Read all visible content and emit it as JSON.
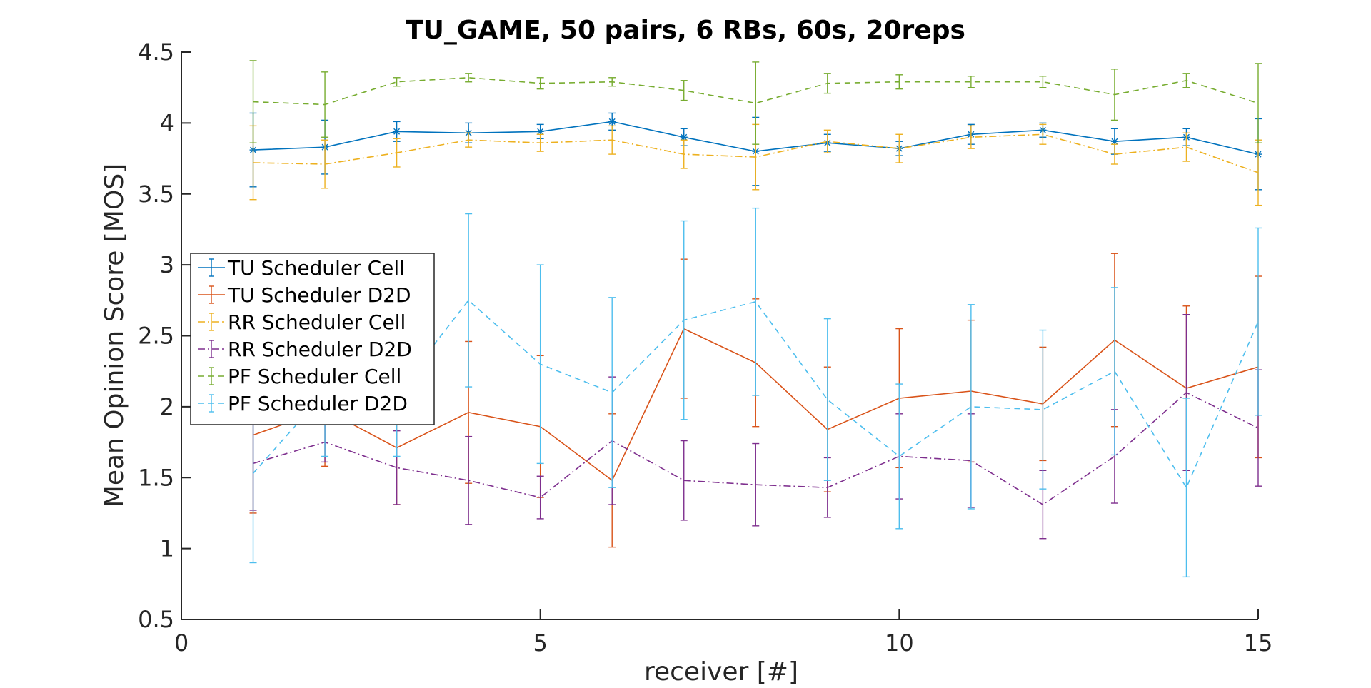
{
  "chart_data": {
    "type": "line",
    "title": "TU_GAME, 50 pairs, 6 RBs, 60s, 20reps",
    "xlabel": "receiver [#]",
    "ylabel": "Mean Opinion Score [MOS]",
    "xlim": [
      0,
      15
    ],
    "ylim": [
      0.5,
      4.5
    ],
    "xticks": [
      0,
      5,
      10,
      15
    ],
    "yticks": [
      0.5,
      1,
      1.5,
      2,
      2.5,
      3,
      3.5,
      4,
      4.5
    ],
    "xtick_labels": [
      "0",
      "5",
      "10",
      "15"
    ],
    "ytick_labels": [
      "0.5",
      "1",
      "1.5",
      "2",
      "2.5",
      "3",
      "3.5",
      "4",
      "4.5"
    ],
    "grid": false,
    "legend_position": "left",
    "x": [
      1,
      2,
      3,
      4,
      5,
      6,
      7,
      8,
      9,
      10,
      11,
      12,
      13,
      14,
      15
    ],
    "series": [
      {
        "name": "TU Scheduler Cell",
        "color": "#0072BD",
        "dash": "",
        "marker": "asterisk",
        "values": [
          3.81,
          3.83,
          3.94,
          3.93,
          3.94,
          4.01,
          3.9,
          3.8,
          3.86,
          3.82,
          3.92,
          3.95,
          3.87,
          3.9,
          3.78
        ],
        "err": [
          0.26,
          0.19,
          0.07,
          0.07,
          0.05,
          0.06,
          0.06,
          0.24,
          0.06,
          0.05,
          0.07,
          0.05,
          0.09,
          0.06,
          0.25
        ]
      },
      {
        "name": "TU Scheduler D2D",
        "color": "#D95319",
        "dash": "",
        "marker": "none",
        "values": [
          1.8,
          1.98,
          1.71,
          1.96,
          1.86,
          1.48,
          2.55,
          2.31,
          1.84,
          2.06,
          2.11,
          2.02,
          2.47,
          2.13,
          2.28
        ],
        "err": [
          0.55,
          0.4,
          0.4,
          0.5,
          0.5,
          0.47,
          0.49,
          0.45,
          0.44,
          0.49,
          0.5,
          0.4,
          0.61,
          0.58,
          0.64
        ]
      },
      {
        "name": "RR Scheduler Cell",
        "color": "#EDB120",
        "dash": "10 4 2 4",
        "marker": "none",
        "values": [
          3.72,
          3.71,
          3.79,
          3.88,
          3.86,
          3.88,
          3.78,
          3.76,
          3.87,
          3.82,
          3.9,
          3.92,
          3.78,
          3.83,
          3.65
        ],
        "err": [
          0.26,
          0.17,
          0.1,
          0.05,
          0.06,
          0.1,
          0.1,
          0.23,
          0.08,
          0.1,
          0.08,
          0.07,
          0.07,
          0.1,
          0.23
        ]
      },
      {
        "name": "RR Scheduler D2D",
        "color": "#7E2F8E",
        "dash": "10 4 2 4",
        "marker": "none",
        "values": [
          1.6,
          1.75,
          1.57,
          1.48,
          1.36,
          1.76,
          1.48,
          1.45,
          1.43,
          1.65,
          1.62,
          1.31,
          1.65,
          2.1,
          1.85
        ],
        "err": [
          0.33,
          0.14,
          0.26,
          0.31,
          0.15,
          0.45,
          0.28,
          0.29,
          0.21,
          0.3,
          0.33,
          0.24,
          0.33,
          0.55,
          0.41
        ]
      },
      {
        "name": "PF Scheduler Cell",
        "color": "#77AC30",
        "dash": "8 6",
        "marker": "none",
        "values": [
          4.15,
          4.13,
          4.29,
          4.32,
          4.28,
          4.29,
          4.23,
          4.14,
          4.28,
          4.29,
          4.29,
          4.29,
          4.2,
          4.3,
          4.14
        ],
        "err": [
          0.29,
          0.23,
          0.03,
          0.03,
          0.04,
          0.03,
          0.07,
          0.29,
          0.07,
          0.05,
          0.04,
          0.04,
          0.18,
          0.05,
          0.28
        ]
      },
      {
        "name": "PF Scheduler D2D",
        "color": "#4DBEEE",
        "dash": "8 6",
        "marker": "none",
        "values": [
          1.53,
          2.1,
          2.1,
          2.75,
          2.3,
          2.1,
          2.61,
          2.74,
          2.05,
          1.65,
          2.0,
          1.98,
          2.25,
          1.43,
          2.6
        ],
        "err": [
          0.63,
          0.45,
          0.45,
          0.61,
          0.7,
          0.67,
          0.7,
          0.66,
          0.57,
          0.51,
          0.72,
          0.56,
          0.59,
          0.63,
          0.66
        ]
      }
    ]
  }
}
